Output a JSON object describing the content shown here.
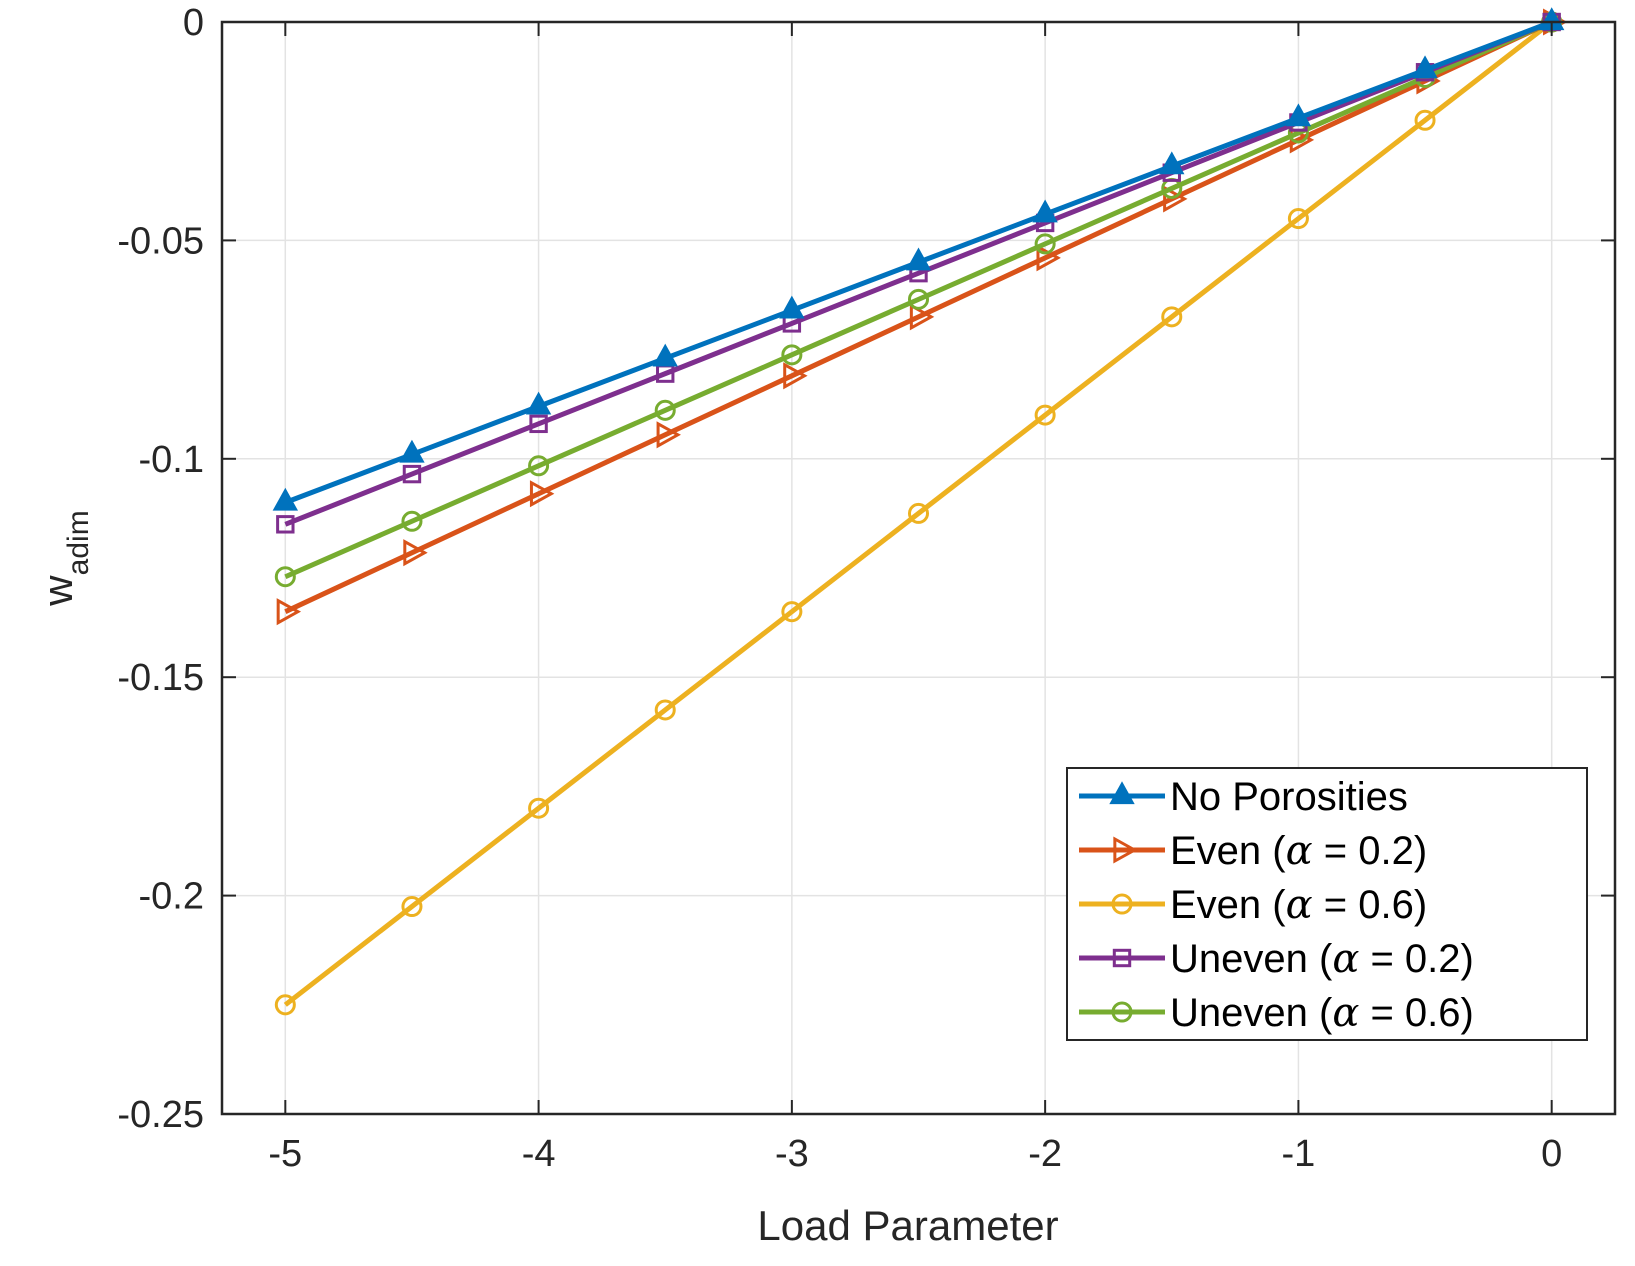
{
  "chart_data": {
    "type": "line",
    "title": "",
    "xlabel": "Load Parameter",
    "ylabel": "w",
    "ylabel_subscript": "adim",
    "xlim": [
      -5.25,
      0.25
    ],
    "ylim": [
      -0.25,
      0.0
    ],
    "x_ticks": [
      -5,
      -4,
      -3,
      -2,
      -1,
      0
    ],
    "x_tick_labels": [
      "-5",
      "-4",
      "-3",
      "-2",
      "-1",
      "0"
    ],
    "y_ticks": [
      0,
      -0.05,
      -0.1,
      -0.15,
      -0.2,
      -0.25
    ],
    "y_tick_labels": [
      "0",
      "-0.05",
      "-0.1",
      "-0.15",
      "-0.2",
      "-0.25"
    ],
    "grid": true,
    "legend_position": "bottom-right",
    "x": [
      -5,
      -4.5,
      -4,
      -3.5,
      -3,
      -2.5,
      -2,
      -1.5,
      -1,
      -0.5,
      0
    ],
    "series": [
      {
        "name": "No Porosities",
        "legend_main": "No Porosities",
        "legend_alpha": "",
        "legend_close": "",
        "color": "#0072BD",
        "marker": "triangle-up",
        "values": [
          -0.11,
          -0.099,
          -0.088,
          -0.077,
          -0.066,
          -0.055,
          -0.044,
          -0.033,
          -0.022,
          -0.011,
          0.0
        ]
      },
      {
        "name": "Even (α = 0.2)",
        "legend_main": "Even (",
        "legend_alpha": "α",
        "legend_close": " = 0.2)",
        "color": "#D95319",
        "marker": "triangle-right",
        "values": [
          -0.135,
          -0.1215,
          -0.108,
          -0.0945,
          -0.081,
          -0.0675,
          -0.054,
          -0.0405,
          -0.027,
          -0.0135,
          0.0
        ]
      },
      {
        "name": "Even (α = 0.6)",
        "legend_main": "Even (",
        "legend_alpha": "α",
        "legend_close": " = 0.6)",
        "color": "#EDB120",
        "marker": "circle",
        "values": [
          -0.225,
          -0.2025,
          -0.18,
          -0.1575,
          -0.135,
          -0.1125,
          -0.09,
          -0.0675,
          -0.045,
          -0.0225,
          0.0
        ]
      },
      {
        "name": "Uneven (α = 0.2)",
        "legend_main": "Uneven (",
        "legend_alpha": "α",
        "legend_close": " = 0.2)",
        "color": "#7E2F8E",
        "marker": "square",
        "values": [
          -0.115,
          -0.1035,
          -0.092,
          -0.0805,
          -0.069,
          -0.0575,
          -0.046,
          -0.0345,
          -0.023,
          -0.0115,
          0.0
        ]
      },
      {
        "name": "Uneven (α = 0.6)",
        "legend_main": "Uneven (",
        "legend_alpha": "α",
        "legend_close": " = 0.6)",
        "color": "#77AC30",
        "marker": "circle",
        "values": [
          -0.127,
          -0.1143,
          -0.1016,
          -0.0889,
          -0.0762,
          -0.0635,
          -0.0508,
          -0.0381,
          -0.0254,
          -0.0127,
          0.0
        ]
      }
    ]
  }
}
